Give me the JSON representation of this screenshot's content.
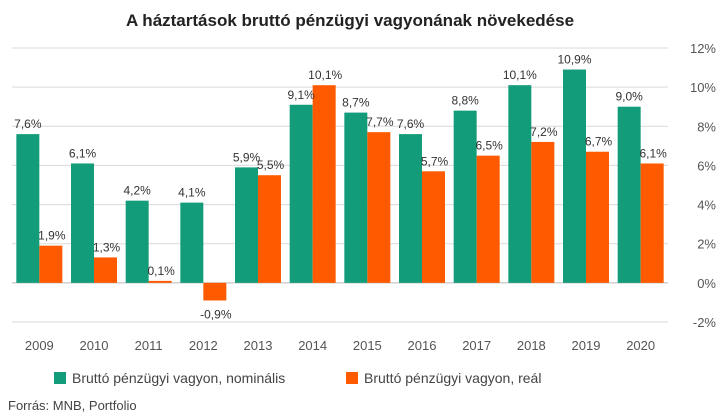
{
  "chart_data": {
    "type": "bar",
    "title": "A háztartások bruttó pénzügyi vagyonának növekedése",
    "categories": [
      "2009",
      "2010",
      "2011",
      "2012",
      "2013",
      "2014",
      "2015",
      "2016",
      "2017",
      "2018",
      "2019",
      "2020"
    ],
    "series": [
      {
        "name": "Bruttó pénzügyi vagyon, nominális",
        "color": "#139c7a",
        "values": [
          7.6,
          6.1,
          4.2,
          4.1,
          5.9,
          9.1,
          8.7,
          7.6,
          8.8,
          10.1,
          10.9,
          9.0
        ],
        "labels": [
          "7,6%",
          "6,1%",
          "4,2%",
          "4,1%",
          "5,9%",
          "9,1%",
          "8,7%",
          "7,6%",
          "8,8%",
          "10,1%",
          "10,9%",
          "9,0%"
        ]
      },
      {
        "name": "Bruttó pénzügyi vagyon, reál",
        "color": "#ff5a00",
        "values": [
          1.9,
          1.3,
          0.1,
          -0.9,
          5.5,
          10.1,
          7.7,
          5.7,
          6.5,
          7.2,
          6.7,
          6.1
        ],
        "labels": [
          "1,9%",
          "1,3%",
          "0,1%",
          "-0,9%",
          "5,5%",
          "10,1%",
          "7,7%",
          "5,7%",
          "6,5%",
          "7,2%",
          "6,7%",
          "6,1%"
        ]
      }
    ],
    "ylim": [
      -2,
      12
    ],
    "yticks": [
      -2,
      0,
      2,
      4,
      6,
      8,
      10,
      12
    ],
    "ytick_labels": [
      "-2%",
      "0%",
      "2%",
      "4%",
      "6%",
      "8%",
      "10%",
      "12%"
    ],
    "y_axis_side": "right",
    "grid": true,
    "legend_position": "bottom",
    "source": "Forrás: MNB, Portfolio"
  }
}
